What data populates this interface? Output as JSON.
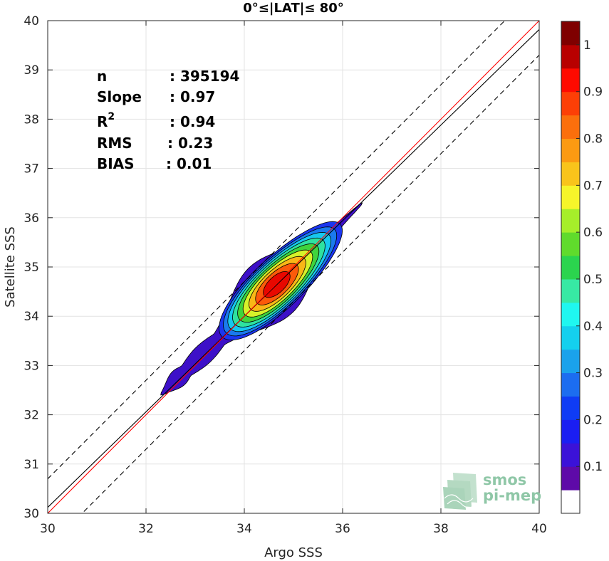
{
  "chart_data": {
    "type": "contour",
    "title": "0°≤|LAT|≤ 80°",
    "xlabel": "Argo SSS",
    "ylabel": "Satellite SSS",
    "xlim": [
      30,
      40
    ],
    "ylim": [
      30,
      40
    ],
    "x_ticks": [
      "30",
      "32",
      "34",
      "36",
      "38",
      "40"
    ],
    "y_ticks": [
      "30",
      "31",
      "32",
      "33",
      "34",
      "35",
      "36",
      "37",
      "38",
      "39",
      "40"
    ],
    "grid": true,
    "stats": {
      "n": {
        "label": "n",
        "value": ": 395194"
      },
      "slope": {
        "label": "Slope",
        "value": ": 0.97"
      },
      "r2": {
        "label": "R",
        "sup": "2",
        "value": ": 0.94"
      },
      "rms": {
        "label": "RMS",
        "value": ": 0.23"
      },
      "bias": {
        "label": "BIAS",
        "value": ": 0.01"
      }
    },
    "lines": {
      "identity": {
        "points": [
          [
            30,
            30
          ],
          [
            40,
            40
          ]
        ],
        "color": "#ff0000"
      },
      "regression": {
        "points": [
          [
            30,
            30.12
          ],
          [
            40,
            39.82
          ]
        ],
        "color": "#000000"
      },
      "upper_bound": {
        "points": [
          [
            30,
            30.7
          ],
          [
            40,
            40.7
          ]
        ],
        "color": "#000000",
        "style": "dashed"
      },
      "lower_bound": {
        "points": [
          [
            30,
            29.3
          ],
          [
            40,
            39.3
          ]
        ],
        "color": "#000000",
        "style": "dashed"
      }
    },
    "density": {
      "center": [
        34.6,
        34.7
      ],
      "major_axis": {
        "from": [
          32.3,
          32.4
        ],
        "to": [
          36.4,
          36.3
        ]
      },
      "peak_value": 1
    },
    "colorbar": {
      "range": [
        0,
        1
      ],
      "ticks": [
        "0.1",
        "0.2",
        "0.3",
        "0.4",
        "0.5",
        "0.6",
        "0.7",
        "0.8",
        "0.9",
        "1"
      ],
      "levels": [
        {
          "from": 0.0,
          "to": 0.05,
          "color": "#ffffff"
        },
        {
          "from": 0.05,
          "to": 0.1,
          "color": "#5e0aa8"
        },
        {
          "from": 0.1,
          "to": 0.15,
          "color": "#3b12d8"
        },
        {
          "from": 0.15,
          "to": 0.2,
          "color": "#1a1ef2"
        },
        {
          "from": 0.2,
          "to": 0.25,
          "color": "#0f3cf5"
        },
        {
          "from": 0.25,
          "to": 0.3,
          "color": "#1c6df0"
        },
        {
          "from": 0.3,
          "to": 0.35,
          "color": "#1aa2ec"
        },
        {
          "from": 0.35,
          "to": 0.4,
          "color": "#14d0ee"
        },
        {
          "from": 0.4,
          "to": 0.45,
          "color": "#1ff7f0"
        },
        {
          "from": 0.45,
          "to": 0.5,
          "color": "#37e9a4"
        },
        {
          "from": 0.5,
          "to": 0.55,
          "color": "#2bd44e"
        },
        {
          "from": 0.55,
          "to": 0.6,
          "color": "#60db2c"
        },
        {
          "from": 0.6,
          "to": 0.65,
          "color": "#a6ee2a"
        },
        {
          "from": 0.65,
          "to": 0.7,
          "color": "#f6f52a"
        },
        {
          "from": 0.7,
          "to": 0.75,
          "color": "#f9c41b"
        },
        {
          "from": 0.75,
          "to": 0.8,
          "color": "#fb9a12"
        },
        {
          "from": 0.8,
          "to": 0.85,
          "color": "#fb6f0c"
        },
        {
          "from": 0.85,
          "to": 0.9,
          "color": "#fd3f06"
        },
        {
          "from": 0.9,
          "to": 0.95,
          "color": "#ff0a00"
        },
        {
          "from": 0.95,
          "to": 1.0,
          "color": "#b80000"
        },
        {
          "from": 1.0,
          "to": 1.05,
          "color": "#7f0000"
        }
      ]
    },
    "contour_levels": [
      0.05,
      0.1,
      0.2,
      0.3,
      0.4,
      0.5,
      0.6,
      0.7,
      0.8,
      0.9
    ],
    "contour_colors": [
      "#3d10c8",
      "#1b36f0",
      "#1a7aee",
      "#16c8ef",
      "#2ee2a0",
      "#3fd43c",
      "#d6f22a",
      "#f9b716",
      "#fb5a0a",
      "#e80800"
    ]
  },
  "logo": {
    "line1": "smos",
    "line2": "pi-mep",
    "color": "#8fc7a7"
  }
}
